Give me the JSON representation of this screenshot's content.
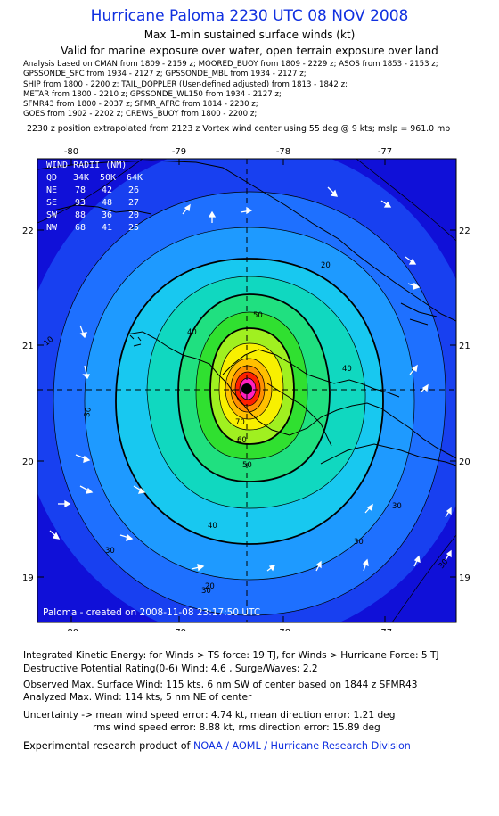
{
  "header": {
    "title": "Hurricane Paloma 2230 UTC 08 NOV 2008",
    "subtitle": "Max 1-min sustained surface winds (kt)",
    "validity": "Valid for marine exposure over water, open terrain exposure over land"
  },
  "sources": [
    "Analysis based on  CMAN from 1809 - 2159 z;  MOORED_BUOY from 1809 - 2229 z;  ASOS from 1853 - 2153 z;",
    "GPSSONDE_SFC from 1934 - 2127 z;  GPSSONDE_MBL from 1934 - 2127 z;",
    "SHIP from 1800 - 2200 z;  TAIL_DOPPLER (User-defined adjusted) from 1813 - 1842 z;",
    "METAR from 1800 - 2210 z;  GPSSONDE_WL150 from 1934 - 2127 z;",
    "SFMR43 from 1800 - 2037 z;  SFMR_AFRC from 1814 - 2230 z;",
    "GOES from 1902 - 2202 z;  CREWS_BUOY from 1800 - 2200 z;"
  ],
  "extrapolation": "2230 z position extrapolated from 2123 z Vortex wind center using 55 deg @ 9 kts; mslp = 961.0 mb",
  "map": {
    "lon_ticks": [
      "-80",
      "-79",
      "-78",
      "-77"
    ],
    "lat_ticks": [
      "22",
      "21",
      "20",
      "19"
    ],
    "contour_labels": [
      "10",
      "30",
      "20",
      "50",
      "40",
      "60",
      "70",
      "50",
      "40",
      "40",
      "30",
      "30",
      "30",
      "30",
      "30",
      "20"
    ],
    "wind_radii": {
      "title": "WIND RADII (NM)",
      "header": [
        "QD",
        "34K",
        "50K",
        "64K"
      ],
      "rows": [
        [
          "NE",
          "78",
          "42",
          "26"
        ],
        [
          "SE",
          "93",
          "48",
          "27"
        ],
        [
          "SW",
          "88",
          "36",
          "20"
        ],
        [
          "NW",
          "68",
          "41",
          "25"
        ]
      ]
    },
    "credit": "Paloma - created on 2008-11-08 23:17:50 UTC",
    "colors": {
      "deep": "#1010d8",
      "blue1": "#1840f0",
      "blue2": "#1e70ff",
      "blue3": "#1e9aff",
      "cyan": "#18c8f0",
      "teal": "#10d8c0",
      "green1": "#20e080",
      "green2": "#30e030",
      "lime": "#a0f020",
      "yellow": "#f8f000",
      "orange": "#ff9000",
      "red": "#ff2000",
      "magenta": "#ff20c0"
    }
  },
  "footer": {
    "ike": "Integrated Kinetic Energy:  for Winds > TS force: 19 TJ,  for Winds > Hurricane Force: 5 TJ",
    "dpr": "Destructive Potential Rating(0-6)   Wind: 4.6 , Surge/Waves: 2.2",
    "obs_max": "Observed Max. Surface Wind: 115 kts, 6 nm SW of center based on 1844 z SFMR43",
    "an_max": "Analyzed Max. Wind: 114 kts, 5 nm NE of center",
    "unc1": "Uncertainty -> mean wind speed error: 4.74 kt,   mean direction error: 1.21 deg",
    "unc2": "rms wind speed error: 8.88 kt,   rms direction error: 15.89 deg",
    "credit_prefix": "Experimental research product of",
    "credit_link": "NOAA / AOML / Hurricane Research Division"
  }
}
